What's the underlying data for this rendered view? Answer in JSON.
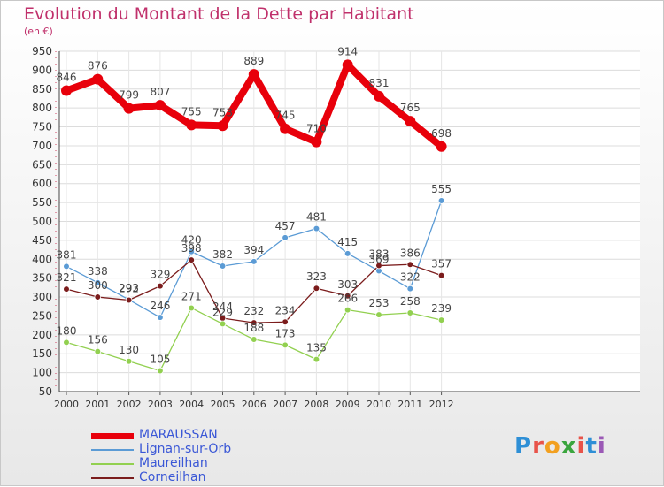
{
  "title": "Evolution du Montant de la Dette par Habitant",
  "unit": "(en €)",
  "logo": "Proxiti",
  "chart_data": {
    "type": "line",
    "x": [
      "2000",
      "2001",
      "2002",
      "2003",
      "2004",
      "2005",
      "2006",
      "2007",
      "2008",
      "2009",
      "2010",
      "2011",
      "2012"
    ],
    "ylim": [
      50,
      950
    ],
    "yticks": [
      50,
      100,
      150,
      200,
      250,
      300,
      350,
      400,
      450,
      500,
      550,
      600,
      650,
      700,
      750,
      800,
      850,
      900,
      950
    ],
    "grid": true,
    "legend_position": "bottom-left",
    "series": [
      {
        "name": "MARAUSSAN",
        "color": "#e8000b",
        "values": [
          846,
          876,
          799,
          807,
          755,
          753,
          889,
          745,
          710,
          914,
          831,
          765,
          698
        ]
      },
      {
        "name": "Lignan-sur-Orb",
        "color": "#5b9bd5",
        "values": [
          381,
          338,
          293,
          246,
          420,
          382,
          394,
          457,
          481,
          415,
          369,
          322,
          555
        ]
      },
      {
        "name": "Maureilhan",
        "color": "#92d050",
        "values": [
          180,
          156,
          130,
          105,
          271,
          229,
          188,
          173,
          135,
          266,
          253,
          258,
          239
        ]
      },
      {
        "name": "Corneilhan",
        "color": "#7b1c1c",
        "values": [
          321,
          300,
          292,
          329,
          398,
          244,
          232,
          234,
          323,
          303,
          383,
          386,
          357
        ]
      }
    ]
  }
}
